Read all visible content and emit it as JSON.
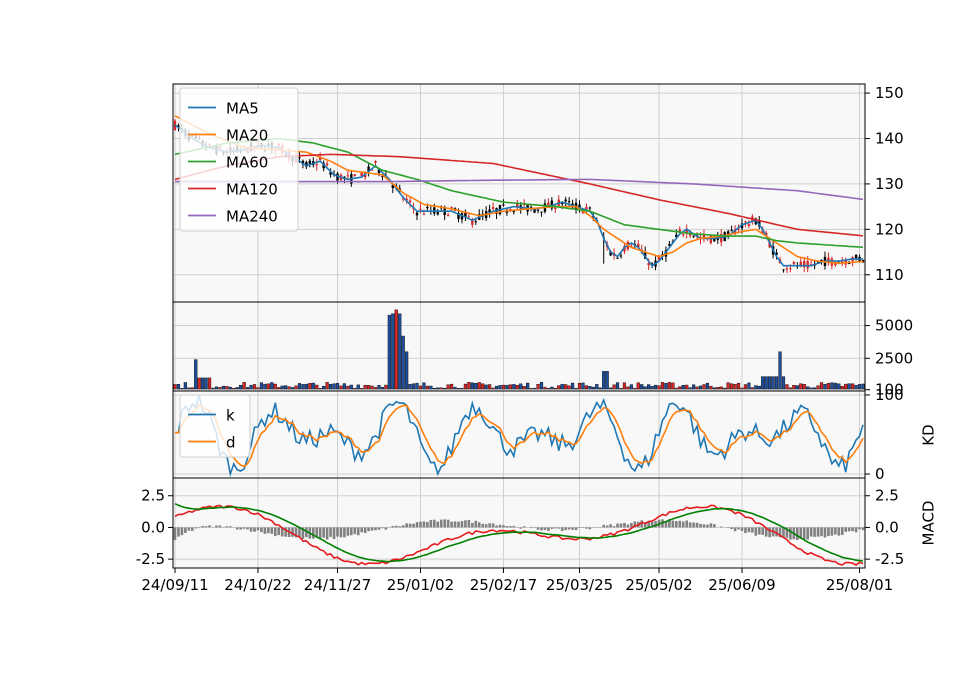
{
  "chart_data": {
    "type": "line",
    "x_tick_labels": [
      "24/09/11",
      "24/10/22",
      "24/11/27",
      "25/01/02",
      "25/02/17",
      "25/03/25",
      "25/05/02",
      "25/06/09",
      "25/08/01"
    ],
    "panels": [
      {
        "id": "price",
        "chart_type": "candlestick",
        "ylim": [
          104,
          152
        ],
        "yticks": [
          110,
          120,
          130,
          140,
          150
        ],
        "legend": "upper-left",
        "grid": true,
        "series": [
          {
            "name": "MA5",
            "color": "#1f77b4"
          },
          {
            "name": "MA20",
            "color": "#ff7f0e"
          },
          {
            "name": "MA60",
            "color": "#2ca02c"
          },
          {
            "name": "MA120",
            "color": "#d62728"
          },
          {
            "name": "MA240",
            "color": "#9467bd"
          }
        ],
        "ma_anchors": {
          "MA5": [
            [
              0,
              143
            ],
            [
              5,
              140
            ],
            [
              10,
              138
            ],
            [
              15,
              137
            ],
            [
              20,
              137.5
            ],
            [
              25,
              138.5
            ],
            [
              30,
              138
            ],
            [
              34,
              136
            ],
            [
              38,
              134
            ],
            [
              42,
              135
            ],
            [
              46,
              132
            ],
            [
              50,
              131
            ],
            [
              54,
              131.5
            ],
            [
              58,
              134
            ],
            [
              62,
              131
            ],
            [
              66,
              127
            ],
            [
              70,
              124
            ],
            [
              75,
              124
            ],
            [
              80,
              124
            ],
            [
              86,
              122
            ],
            [
              92,
              124
            ],
            [
              98,
              125
            ],
            [
              104,
              124.5
            ],
            [
              108,
              125
            ],
            [
              112,
              126
            ],
            [
              116,
              125
            ],
            [
              120,
              124
            ],
            [
              122,
              122
            ],
            [
              124,
              118
            ],
            [
              126,
              115
            ],
            [
              128,
              114
            ],
            [
              130,
              116
            ],
            [
              132,
              117
            ],
            [
              134,
              116
            ],
            [
              136,
              114
            ],
            [
              138,
              112
            ],
            [
              140,
              113
            ],
            [
              142,
              115
            ],
            [
              144,
              117
            ],
            [
              146,
              119
            ],
            [
              148,
              120
            ],
            [
              150,
              119
            ],
            [
              152,
              118
            ],
            [
              156,
              118
            ],
            [
              160,
              118.5
            ],
            [
              164,
              121
            ],
            [
              168,
              122
            ],
            [
              170,
              120
            ],
            [
              172,
              117
            ],
            [
              174,
              114
            ],
            [
              176,
              112
            ],
            [
              180,
              112
            ],
            [
              184,
              112
            ],
            [
              188,
              113
            ],
            [
              192,
              113
            ],
            [
              196,
              113.5
            ],
            [
              200,
              113.5
            ]
          ],
          "MA20": [
            [
              0,
              145
            ],
            [
              10,
              141
            ],
            [
              20,
              138
            ],
            [
              30,
              137.5
            ],
            [
              38,
              137
            ],
            [
              45,
              135
            ],
            [
              50,
              133
            ],
            [
              55,
              132.5
            ],
            [
              60,
              132
            ],
            [
              66,
              128
            ],
            [
              72,
              125.5
            ],
            [
              80,
              124.5
            ],
            [
              88,
              123
            ],
            [
              95,
              124
            ],
            [
              102,
              124.5
            ],
            [
              110,
              125
            ],
            [
              116,
              125
            ],
            [
              120,
              123
            ],
            [
              124,
              120
            ],
            [
              128,
              118
            ],
            [
              132,
              116
            ],
            [
              136,
              115
            ],
            [
              140,
              114
            ],
            [
              144,
              115
            ],
            [
              148,
              117
            ],
            [
              152,
              118
            ],
            [
              158,
              118.5
            ],
            [
              164,
              119.5
            ],
            [
              168,
              120
            ],
            [
              172,
              118
            ],
            [
              176,
              116
            ],
            [
              180,
              114
            ],
            [
              186,
              113
            ],
            [
              192,
              112.5
            ],
            [
              200,
              113
            ]
          ],
          "MA60": [
            [
              0,
              136.5
            ],
            [
              15,
              139
            ],
            [
              30,
              140
            ],
            [
              40,
              139
            ],
            [
              50,
              137
            ],
            [
              60,
              133
            ],
            [
              70,
              131
            ],
            [
              80,
              128.5
            ],
            [
              95,
              126
            ],
            [
              110,
              125
            ],
            [
              120,
              124
            ],
            [
              130,
              121
            ],
            [
              140,
              120
            ],
            [
              150,
              119
            ],
            [
              160,
              118.5
            ],
            [
              168,
              118.5
            ],
            [
              174,
              117.5
            ],
            [
              180,
              117
            ],
            [
              190,
              116.5
            ],
            [
              200,
              116
            ]
          ],
          "MA120": [
            [
              0,
              131
            ],
            [
              15,
              134
            ],
            [
              30,
              136
            ],
            [
              45,
              136.5
            ],
            [
              65,
              136
            ],
            [
              92,
              134.5
            ],
            [
              120,
              130
            ],
            [
              140,
              126.5
            ],
            [
              160,
              123.5
            ],
            [
              180,
              120
            ],
            [
              200,
              118.5
            ]
          ],
          "MA240": [
            [
              0,
              130.5
            ],
            [
              30,
              130.5
            ],
            [
              60,
              130.5
            ],
            [
              90,
              130.8
            ],
            [
              120,
              131
            ],
            [
              150,
              130
            ],
            [
              180,
              128.5
            ],
            [
              200,
              126.5
            ]
          ]
        }
      },
      {
        "id": "volume",
        "chart_type": "bar",
        "ylim": [
          0,
          6800
        ],
        "yticks": [
          100,
          2500,
          5000
        ],
        "grid": true,
        "notable_values": {
          "peak": 6200,
          "baseline": 400
        }
      },
      {
        "id": "kd",
        "ylabel": "KD",
        "ylim": [
          -5,
          105
        ],
        "yticks": [
          0,
          100
        ],
        "legend": "upper-left",
        "grid": true,
        "series": [
          {
            "name": "k",
            "color": "#1f77b4"
          },
          {
            "name": "d",
            "color": "#ff7f0e"
          }
        ]
      },
      {
        "id": "macd",
        "ylabel": "MACD",
        "ylim": [
          -3.2,
          3.9
        ],
        "yticks": [
          -2.5,
          0.0,
          2.5
        ],
        "grid": true,
        "series": [
          {
            "color": "#e41a1c"
          },
          {
            "color": "#008000"
          }
        ]
      }
    ]
  }
}
